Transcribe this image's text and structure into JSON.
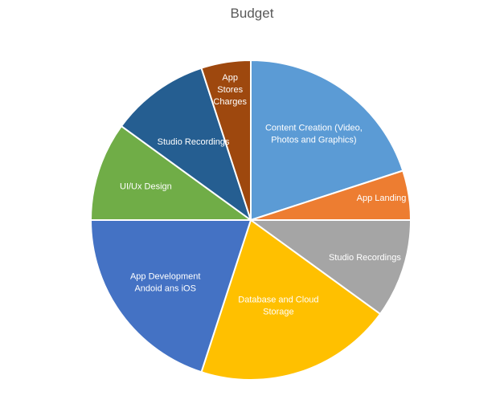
{
  "chart_data": {
    "type": "pie",
    "title": "Budget",
    "slices": [
      {
        "label": "Content Creation (Video, Photos and Graphics)",
        "lines": [
          "Content Creation (Video,",
          "Photos and Graphics)"
        ],
        "value": 20,
        "color": "#5B9BD5"
      },
      {
        "label": "App Landing Page",
        "lines": [
          "App Landing Page"
        ],
        "value": 5,
        "color": "#ED7D31"
      },
      {
        "label": "Studio Recordings",
        "lines": [
          "Studio Recordings"
        ],
        "value": 10,
        "color": "#A5A5A5"
      },
      {
        "label": "Database and Cloud Storage",
        "lines": [
          "Database and Cloud",
          "Storage"
        ],
        "value": 20,
        "color": "#FFC000"
      },
      {
        "label": "App Development Andoid ans iOS",
        "lines": [
          "App Development",
          "Andoid ans iOS"
        ],
        "value": 20,
        "color": "#4472C4"
      },
      {
        "label": "UI/Ux Design",
        "lines": [
          "UI/Ux Design"
        ],
        "value": 10,
        "color": "#70AD47"
      },
      {
        "label": "Studio Recordings",
        "lines": [
          "Studio Recordings"
        ],
        "value": 10,
        "color": "#255E91"
      },
      {
        "label": "App Stores Charges",
        "lines": [
          "App",
          "Stores",
          "Charges"
        ],
        "value": 5,
        "color": "#9E480E"
      }
    ]
  }
}
